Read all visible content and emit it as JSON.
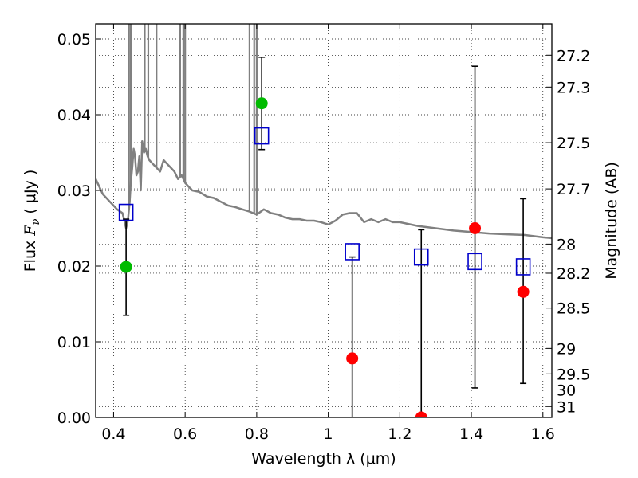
{
  "chart_data": {
    "type": "scatter",
    "xlabel": "Wavelength  λ (μm)",
    "ylabel_text": "Flux  ",
    "ylabel_math": "F",
    "ylabel_sub": "ν",
    "ylabel_unit": "  ( μJy )",
    "y2label": "Magnitude (AB)",
    "xlim": [
      0.35,
      1.625
    ],
    "ylim": [
      0.0,
      0.052
    ],
    "grid": true,
    "x_ticks": [
      0.4,
      0.6,
      0.8,
      1.0,
      1.2,
      1.4,
      1.6
    ],
    "x_tick_labels": [
      "0.4",
      "0.6",
      "0.8",
      "1",
      "1.2",
      "1.4",
      "1.6"
    ],
    "y_ticks": [
      0.0,
      0.01,
      0.02,
      0.03,
      0.04,
      0.05
    ],
    "y_tick_labels": [
      "0.00",
      "0.01",
      "0.02",
      "0.03",
      "0.04",
      "0.05"
    ],
    "mag_ticks": [
      27.2,
      27.3,
      27.5,
      27.7,
      28,
      28.2,
      28.5,
      29,
      29.5,
      30,
      31
    ],
    "mag_tick_labels": [
      "27.2",
      "27.3",
      "27.5",
      "27.7",
      "28",
      "28.2",
      "28.5",
      "29",
      "29.5",
      "30",
      "31"
    ],
    "model_sed": {
      "color": "#808080",
      "x": [
        0.35,
        0.37,
        0.39,
        0.41,
        0.425,
        0.435,
        0.44,
        0.445,
        0.448,
        0.452,
        0.456,
        0.46,
        0.464,
        0.468,
        0.472,
        0.476,
        0.48,
        0.485,
        0.49,
        0.495,
        0.5,
        0.51,
        0.52,
        0.53,
        0.54,
        0.55,
        0.56,
        0.57,
        0.58,
        0.59,
        0.6,
        0.61,
        0.62,
        0.64,
        0.66,
        0.68,
        0.7,
        0.72,
        0.74,
        0.76,
        0.78,
        0.8,
        0.82,
        0.84,
        0.86,
        0.88,
        0.9,
        0.92,
        0.94,
        0.96,
        0.98,
        1.0,
        1.02,
        1.04,
        1.06,
        1.08,
        1.1,
        1.12,
        1.14,
        1.16,
        1.18,
        1.2,
        1.25,
        1.3,
        1.35,
        1.4,
        1.45,
        1.5,
        1.55,
        1.6,
        1.625
      ],
      "y": [
        0.0315,
        0.0295,
        0.0285,
        0.0275,
        0.027,
        0.025,
        0.026,
        0.0285,
        0.031,
        0.033,
        0.0355,
        0.0345,
        0.032,
        0.0325,
        0.0345,
        0.03,
        0.0365,
        0.035,
        0.0355,
        0.0345,
        0.034,
        0.0335,
        0.033,
        0.0325,
        0.034,
        0.0335,
        0.033,
        0.0325,
        0.0315,
        0.032,
        0.031,
        0.0305,
        0.03,
        0.0298,
        0.0292,
        0.029,
        0.0285,
        0.028,
        0.0278,
        0.0275,
        0.0272,
        0.0268,
        0.0275,
        0.027,
        0.0268,
        0.0264,
        0.0262,
        0.0262,
        0.026,
        0.026,
        0.0258,
        0.0255,
        0.026,
        0.0268,
        0.027,
        0.027,
        0.0258,
        0.0262,
        0.0258,
        0.0262,
        0.0258,
        0.0258,
        0.0253,
        0.025,
        0.0247,
        0.0245,
        0.0243,
        0.0242,
        0.0241,
        0.0238,
        0.0237
      ],
      "emission_lines": [
        [
          0.443,
          0.052
        ],
        [
          0.448,
          0.052
        ],
        [
          0.487,
          0.052
        ],
        [
          0.497,
          0.052
        ],
        [
          0.52,
          0.052
        ],
        [
          0.586,
          0.052
        ],
        [
          0.595,
          0.052
        ],
        [
          0.6,
          0.052
        ],
        [
          0.78,
          0.052
        ],
        [
          0.793,
          0.052
        ],
        [
          0.8,
          0.052
        ]
      ]
    },
    "series": [
      {
        "marker": "circle",
        "color": "#00bb00",
        "points": [
          {
            "x": 0.435,
            "y": 0.0199,
            "err_low": 0.0135,
            "err_high": 0.0262
          },
          {
            "x": 0.814,
            "y": 0.0415,
            "err_low": 0.0354,
            "err_high": 0.0476
          }
        ]
      },
      {
        "marker": "circle",
        "color": "#ff0000",
        "points": [
          {
            "x": 1.067,
            "y": 0.0078,
            "err_low": 0.0,
            "err_high": 0.0212
          },
          {
            "x": 1.26,
            "y": 0.0,
            "err_low": 0.0,
            "err_high": 0.0248
          },
          {
            "x": 1.41,
            "y": 0.025,
            "err_low": 0.0039,
            "err_high": 0.0464
          },
          {
            "x": 1.545,
            "y": 0.0166,
            "err_low": 0.0045,
            "err_high": 0.0289
          }
        ]
      },
      {
        "marker": "square-open",
        "color": "#0000cc",
        "points": [
          {
            "x": 0.435,
            "y": 0.0271
          },
          {
            "x": 0.814,
            "y": 0.0372
          },
          {
            "x": 1.067,
            "y": 0.0219
          },
          {
            "x": 1.26,
            "y": 0.0212
          },
          {
            "x": 1.41,
            "y": 0.0206
          },
          {
            "x": 1.545,
            "y": 0.0199
          }
        ]
      }
    ]
  }
}
